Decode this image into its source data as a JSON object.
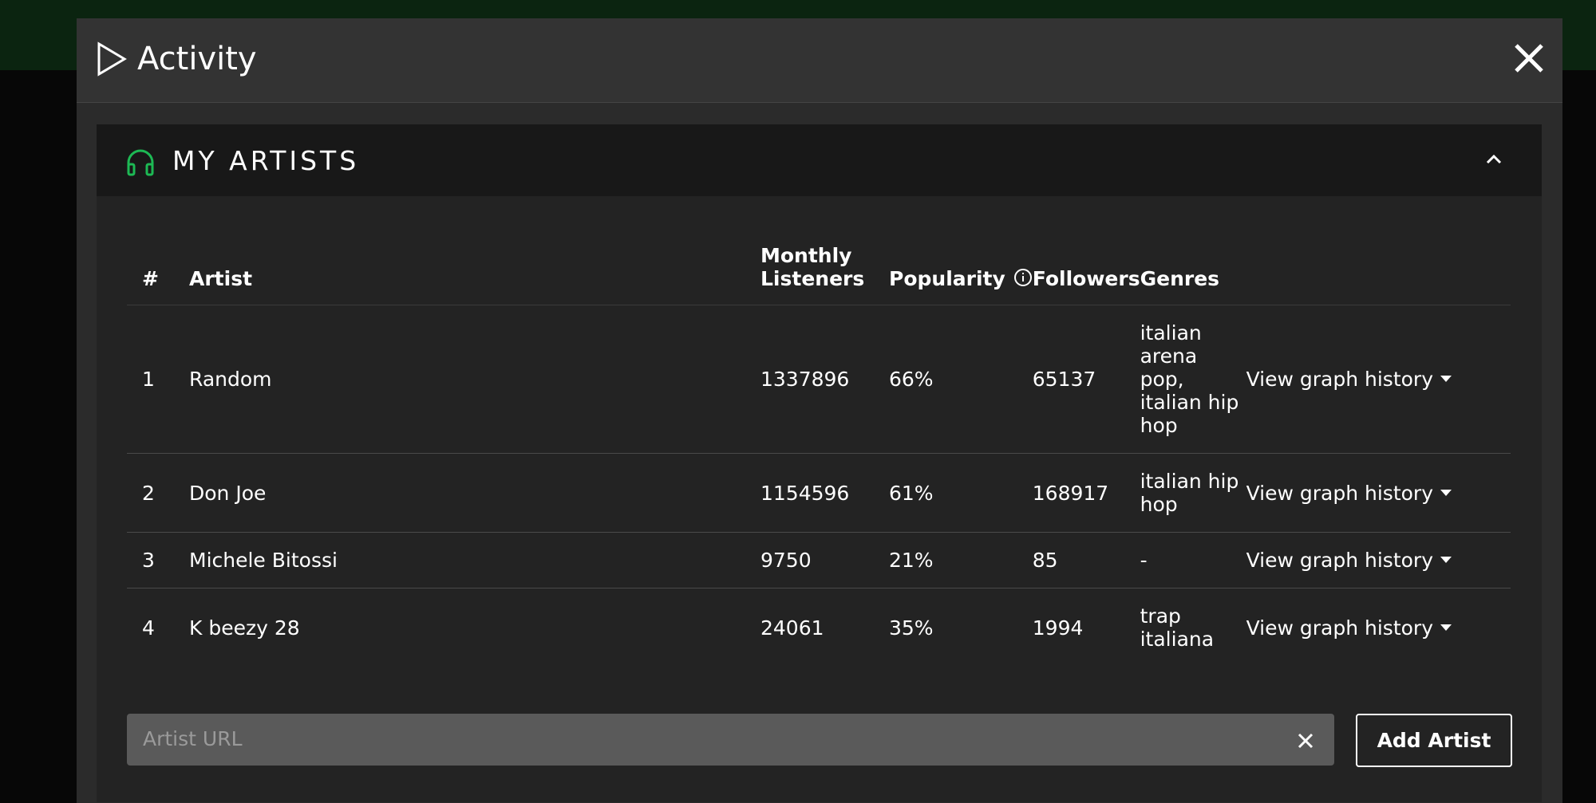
{
  "header": {
    "title": "Activity"
  },
  "section": {
    "title": "MY ARTISTS"
  },
  "table": {
    "columns": [
      "#",
      "Artist",
      "Monthly Listeners",
      "Popularity",
      "Followers",
      "Genres"
    ],
    "rows": [
      [
        "1",
        "Random",
        "1337896",
        "66%",
        "65137",
        "italian arena pop, italian hip hop"
      ],
      [
        "2",
        "Don Joe",
        "1154596",
        "61%",
        "168917",
        "italian hip hop"
      ],
      [
        "3",
        "Michele Bitossi",
        "9750",
        "21%",
        "85",
        "-"
      ],
      [
        "4",
        "K beezy 28",
        "24061",
        "35%",
        "1994",
        "trap italiana"
      ]
    ],
    "action_label": "View graph history"
  },
  "input": {
    "placeholder": "Artist URL"
  },
  "button": {
    "label": "Add Artist"
  }
}
